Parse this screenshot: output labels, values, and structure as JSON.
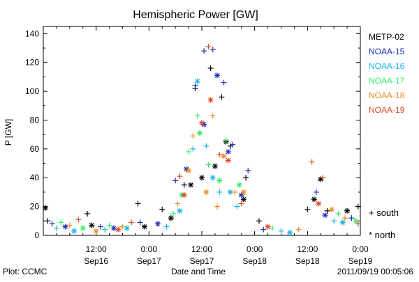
{
  "chart_data": {
    "type": "scatter",
    "title": "Hemispheric Power [GW]",
    "xlabel": "Date and Time",
    "ylabel": "P [GW]",
    "ylim": [
      0,
      145
    ],
    "xlim_hours_label": "Sep16 00:00 to Sep19 00:00",
    "yticks": [
      0,
      20,
      40,
      60,
      80,
      100,
      120,
      140
    ],
    "xticks": [
      {
        "time": "12:00",
        "date": "Sep16"
      },
      {
        "time": "0:00",
        "date": "Sep17"
      },
      {
        "time": "12:00",
        "date": "Sep17"
      },
      {
        "time": "0:00",
        "date": "Sep18"
      },
      {
        "time": "12:00",
        "date": "Sep18"
      },
      {
        "time": "0:00",
        "date": "Sep19"
      }
    ],
    "grid": false,
    "legend_position": "right",
    "series": [
      {
        "name": "METP-02",
        "color": "#000000",
        "south": [
          [
            "2011-09-16 01:00",
            10
          ],
          [
            "2011-09-16 10:00",
            15
          ],
          [
            "2011-09-16 21:30",
            22
          ],
          [
            "2011-09-17 03:00",
            18
          ],
          [
            "2011-09-17 08:00",
            35
          ],
          [
            "2011-09-17 10:30",
            102
          ],
          [
            "2011-09-17 14:00",
            116
          ],
          [
            "2011-09-17 16:30",
            96
          ],
          [
            "2011-09-17 18:30",
            62
          ],
          [
            "2011-09-17 22:00",
            40
          ],
          [
            "2011-09-18 01:00",
            10
          ],
          [
            "2011-09-18 12:00",
            18
          ],
          [
            "2011-09-18 16:30",
            17
          ],
          [
            "2011-09-18 23:30",
            20
          ]
        ],
        "north": [
          [
            "2011-09-16 00:30",
            19
          ],
          [
            "2011-09-16 11:00",
            7
          ],
          [
            "2011-09-16 23:00",
            6
          ],
          [
            "2011-09-17 05:00",
            12
          ],
          [
            "2011-09-17 09:30",
            35
          ],
          [
            "2011-09-17 12:00",
            40
          ],
          [
            "2011-09-17 15:00",
            48
          ],
          [
            "2011-09-17 17:30",
            65
          ],
          [
            "2011-09-17 21:30",
            25
          ],
          [
            "2011-09-18 13:30",
            25
          ],
          [
            "2011-09-18 15:00",
            39
          ],
          [
            "2011-09-18 21:00",
            17
          ]
        ]
      },
      {
        "name": "NOAA-15",
        "color": "#1f2fb8",
        "south": [
          [
            "2011-09-16 02:00",
            8
          ],
          [
            "2011-09-16 13:00",
            6
          ],
          [
            "2011-09-16 22:00",
            9
          ],
          [
            "2011-09-17 06:00",
            38
          ],
          [
            "2011-09-17 10:30",
            104
          ],
          [
            "2011-09-17 12:30",
            128
          ],
          [
            "2011-09-17 14:30",
            129
          ],
          [
            "2011-09-17 17:00",
            106
          ],
          [
            "2011-09-17 19:00",
            63
          ],
          [
            "2011-09-17 22:30",
            45
          ],
          [
            "2011-09-18 02:00",
            4
          ],
          [
            "2011-09-18 14:00",
            30
          ],
          [
            "2011-09-18 22:00",
            12
          ]
        ],
        "north": [
          [
            "2011-09-16 05:00",
            6
          ],
          [
            "2011-09-16 16:00",
            5
          ],
          [
            "2011-09-17 02:00",
            8
          ],
          [
            "2011-09-17 08:30",
            46
          ],
          [
            "2011-09-17 12:30",
            77
          ],
          [
            "2011-09-17 15:30",
            111
          ],
          [
            "2011-09-17 18:00",
            58
          ],
          [
            "2011-09-17 21:00",
            28
          ],
          [
            "2011-09-18 16:00",
            14
          ]
        ]
      },
      {
        "name": "NOAA-16",
        "color": "#19b4e6",
        "south": [
          [
            "2011-09-16 03:00",
            5
          ],
          [
            "2011-09-16 14:00",
            4
          ],
          [
            "2011-09-17 04:00",
            6
          ],
          [
            "2011-09-17 10:00",
            60
          ],
          [
            "2011-09-17 13:00",
            62
          ],
          [
            "2011-09-17 16:00",
            30
          ],
          [
            "2011-09-17 20:00",
            20
          ],
          [
            "2011-09-18 06:00",
            3
          ],
          [
            "2011-09-18 18:00",
            10
          ]
        ],
        "north": [
          [
            "2011-09-16 07:00",
            3
          ],
          [
            "2011-09-16 19:00",
            5
          ],
          [
            "2011-09-17 07:00",
            17
          ],
          [
            "2011-09-17 11:00",
            107
          ],
          [
            "2011-09-17 14:30",
            40
          ],
          [
            "2011-09-17 18:30",
            30
          ],
          [
            "2011-09-18 08:00",
            2
          ],
          [
            "2011-09-18 20:00",
            9
          ]
        ]
      },
      {
        "name": "NOAA-17",
        "color": "#33ee66",
        "south": [
          [
            "2011-09-16 04:00",
            9
          ],
          [
            "2011-09-16 15:00",
            7
          ],
          [
            "2011-09-17 05:30",
            15
          ],
          [
            "2011-09-17 09:00",
            58
          ],
          [
            "2011-09-17 11:00",
            83
          ],
          [
            "2011-09-17 13:30",
            49
          ],
          [
            "2011-09-17 17:30",
            66
          ],
          [
            "2011-09-18 04:00",
            5
          ],
          [
            "2011-09-18 19:00",
            15
          ]
        ],
        "north": [
          [
            "2011-09-16 09:00",
            5
          ],
          [
            "2011-09-17 07:30",
            28
          ],
          [
            "2011-09-17 11:30",
            71
          ],
          [
            "2011-09-17 16:00",
            38
          ],
          [
            "2011-09-17 20:30",
            35
          ],
          [
            "2011-09-18 23:00",
            10
          ]
        ]
      },
      {
        "name": "NOAA-18",
        "color": "#f08c1e",
        "south": [
          [
            "2011-09-16 06:00",
            7
          ],
          [
            "2011-09-16 18:00",
            6
          ],
          [
            "2011-09-17 06:30",
            22
          ],
          [
            "2011-09-17 10:00",
            69
          ],
          [
            "2011-09-17 14:30",
            83
          ],
          [
            "2011-09-17 15:30",
            20
          ],
          [
            "2011-09-17 19:30",
            30
          ],
          [
            "2011-09-18 10:00",
            4
          ],
          [
            "2011-09-18 20:30",
            12
          ]
        ],
        "north": [
          [
            "2011-09-16 12:00",
            3
          ],
          [
            "2011-09-17 09:00",
            45
          ],
          [
            "2011-09-17 13:00",
            30
          ],
          [
            "2011-09-17 17:00",
            55
          ],
          [
            "2011-09-17 21:30",
            30
          ],
          [
            "2011-09-18 17:30",
            18
          ]
        ]
      },
      {
        "name": "NOAA-19",
        "color": "#e04a26",
        "south": [
          [
            "2011-09-16 08:00",
            11
          ],
          [
            "2011-09-16 20:00",
            9
          ],
          [
            "2011-09-17 07:00",
            41
          ],
          [
            "2011-09-17 13:30",
            131
          ],
          [
            "2011-09-17 16:00",
            56
          ],
          [
            "2011-09-17 21:00",
            22
          ],
          [
            "2011-09-18 13:00",
            51
          ],
          [
            "2011-09-18 15:30",
            40
          ],
          [
            "2011-09-18 23:30",
            8
          ]
        ],
        "north": [
          [
            "2011-09-16 17:00",
            4
          ],
          [
            "2011-09-17 08:00",
            28
          ],
          [
            "2011-09-17 12:00",
            78
          ],
          [
            "2011-09-17 14:00",
            94
          ],
          [
            "2011-09-17 18:00",
            52
          ],
          [
            "2011-09-18 03:00",
            6
          ],
          [
            "2011-09-18 14:30",
            22
          ]
        ]
      }
    ],
    "marker_legend": [
      {
        "symbol": "+",
        "label": "south"
      },
      {
        "symbol": "*",
        "label": "north"
      }
    ]
  },
  "footer": {
    "plot_credit": "Plot: CCMC",
    "timestamp": "2011/09/19 00:05:06"
  }
}
